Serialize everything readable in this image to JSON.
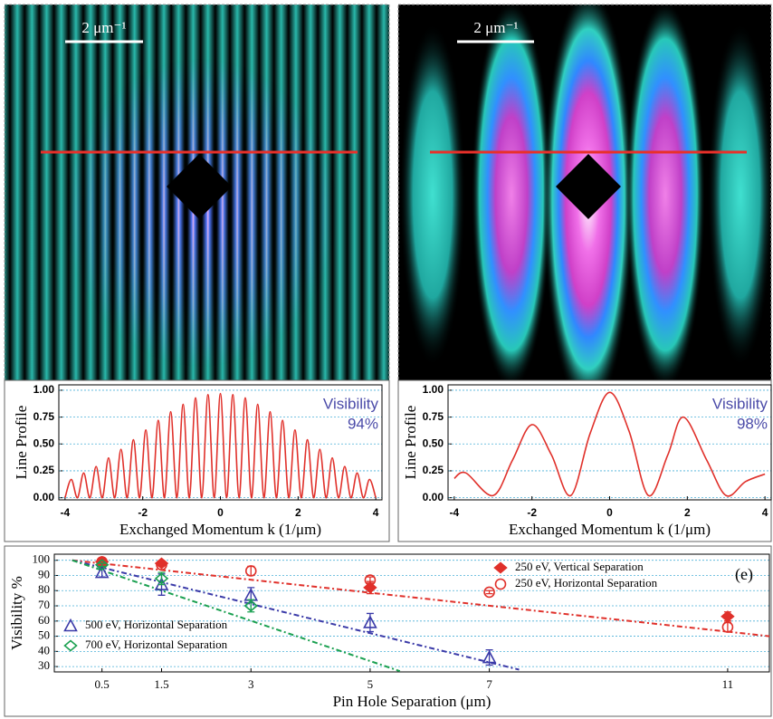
{
  "images": [
    {
      "scale_bar": "2 μm⁻¹"
    },
    {
      "scale_bar": "2 μm⁻¹"
    }
  ],
  "chart_data": [
    {
      "type": "line",
      "ylabel": "Line Profile",
      "xlabel": "Exchanged Momentum k (1/μm)",
      "annotation": "Visibility",
      "visibility": "94%",
      "color": "#e0302a",
      "grid": true,
      "xlim": [
        -4.16,
        4.16
      ],
      "xticks": [
        -4,
        -2,
        0,
        2,
        4
      ],
      "ylim": [
        -0.02,
        1.05
      ],
      "yticks": [
        {
          "value": 0,
          "label": "0.00"
        },
        {
          "value": 0.25,
          "label": "0.25"
        },
        {
          "value": 0.5,
          "label": "0.50"
        },
        {
          "value": 0.75,
          "label": "0.75"
        },
        {
          "value": 1,
          "label": "1.00"
        }
      ],
      "x": [
        -4,
        -3.84,
        -3.68,
        -3.52,
        -3.36,
        -3.2,
        -3.04,
        -2.88,
        -2.72,
        -2.56,
        -2.4,
        -2.24,
        -2.08,
        -1.92,
        -1.76,
        -1.6,
        -1.44,
        -1.28,
        -1.12,
        -0.96,
        -0.8,
        -0.64,
        -0.48,
        -0.32,
        -0.16,
        0,
        0.16,
        0.32,
        0.48,
        0.64,
        0.8,
        0.96,
        1.12,
        1.28,
        1.44,
        1.6,
        1.76,
        1.92,
        2.08,
        2.24,
        2.4,
        2.56,
        2.72,
        2.88,
        3.04,
        3.2,
        3.36,
        3.52,
        3.68,
        3.84,
        4
      ],
      "values": [
        0,
        0.17,
        0,
        0.23,
        0,
        0.29,
        0,
        0.37,
        0,
        0.45,
        0,
        0.54,
        0,
        0.63,
        0,
        0.72,
        0,
        0.8,
        0,
        0.87,
        0,
        0.93,
        0,
        0.96,
        0,
        0.97,
        0,
        0.96,
        0,
        0.93,
        0,
        0.87,
        0,
        0.8,
        0,
        0.72,
        0,
        0.63,
        0,
        0.54,
        0,
        0.45,
        0,
        0.37,
        0,
        0.29,
        0,
        0.23,
        0,
        0.17,
        0
      ]
    },
    {
      "type": "line",
      "ylabel": "Line Profile",
      "xlabel": "Exchanged Momentum k (1/μm)",
      "annotation": "Visibility",
      "visibility": "98%",
      "color": "#e0302a",
      "grid": true,
      "xlim": [
        -4.16,
        4.16
      ],
      "xticks": [
        -4,
        -2,
        0,
        2,
        4
      ],
      "ylim": [
        -0.02,
        1.05
      ],
      "yticks": [
        {
          "value": 0,
          "label": "0.00"
        },
        {
          "value": 0.25,
          "label": "0.25"
        },
        {
          "value": 0.5,
          "label": "0.50"
        },
        {
          "value": 0.75,
          "label": "0.75"
        },
        {
          "value": 1,
          "label": "1.00"
        }
      ],
      "x": [
        -4,
        -3.7,
        -3,
        -2.5,
        -2,
        -1.5,
        -1,
        -0.5,
        0,
        0.5,
        1,
        1.5,
        1.9,
        2.5,
        3,
        3.5,
        4
      ],
      "values": [
        0.18,
        0.23,
        0.02,
        0.35,
        0.68,
        0.4,
        0.02,
        0.6,
        0.98,
        0.62,
        0.02,
        0.4,
        0.75,
        0.35,
        0.02,
        0.15,
        0.22
      ]
    },
    {
      "type": "scatter",
      "ylabel": "Visibility %",
      "xlabel": "Pin Hole Separation (μm)",
      "annotation": "(e)",
      "grid": true,
      "xlim": [
        -0.3,
        11.7
      ],
      "xticks": [
        0.5,
        1.5,
        3,
        5,
        7,
        11
      ],
      "ylim": [
        26.5,
        104
      ],
      "yticks": [
        30,
        40,
        50,
        60,
        70,
        80,
        90,
        100
      ],
      "x": [
        0.5,
        1.5,
        3,
        5,
        7,
        11
      ],
      "series": [
        {
          "name": "250 eV, Vertical Separation",
          "color": "#e0302a",
          "marker": "diamond-filled",
          "values": [
            99,
            98,
            null,
            82,
            null,
            63
          ],
          "errors": [
            1,
            1,
            null,
            4,
            null,
            3
          ]
        },
        {
          "name": "250 eV, Horizontal Separation",
          "color": "#e0302a",
          "marker": "circle-open",
          "values": [
            99,
            97,
            93,
            87,
            79,
            56
          ],
          "errors": [
            1,
            1,
            3,
            2,
            1,
            3
          ]
        },
        {
          "name": "500 eV, Horizontal Separation",
          "color": "#3a3aa8",
          "marker": "triangle-open",
          "values": [
            92,
            84,
            77,
            59,
            36
          ],
          "errors": [
            3,
            7,
            5,
            6,
            5
          ]
        },
        {
          "name": "700 eV, Horizontal Separation",
          "color": "#1aa050",
          "marker": "diamond-open",
          "values": [
            97,
            88,
            70
          ],
          "errors": [
            1,
            4,
            4
          ]
        }
      ],
      "fits": [
        {
          "color": "#e0302a",
          "x": [
            0,
            11.7
          ],
          "values": [
            100,
            50
          ]
        },
        {
          "color": "#3a3aa8",
          "x": [
            0,
            7.5
          ],
          "values": [
            100,
            28
          ]
        },
        {
          "color": "#1aa050",
          "x": [
            0,
            5.5
          ],
          "values": [
            100,
            27
          ]
        }
      ]
    }
  ]
}
